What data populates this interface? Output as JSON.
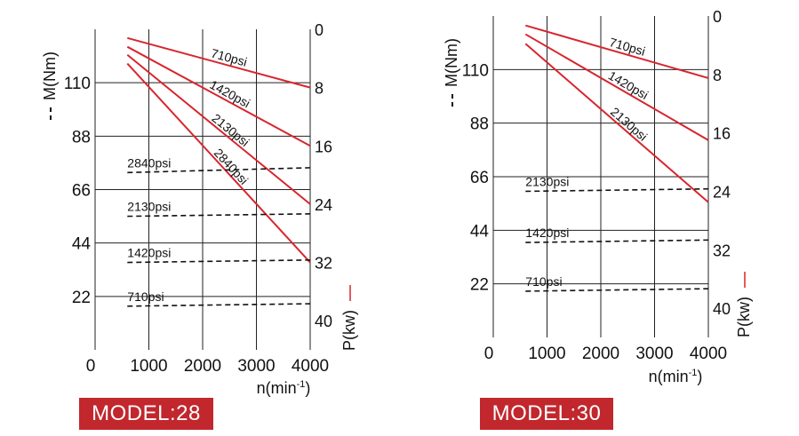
{
  "chart_data": [
    {
      "type": "line",
      "badge": "MODEL:28",
      "ylabel": "M(Nm)",
      "y2label": "P(kw)",
      "xlabel": "n(min",
      "xlabel_sup": "-1",
      "xlabel_close": ")",
      "xlim": [
        0,
        4000
      ],
      "ylim": [
        0,
        132
      ],
      "y2lim": [
        0,
        44
      ],
      "grid": true,
      "xticks": [
        "0",
        "1000",
        "2000",
        "3000",
        "4000"
      ],
      "yticks": [
        {
          "v": 22,
          "label": "22"
        },
        {
          "v": 44,
          "label": "44"
        },
        {
          "v": 66,
          "label": "66"
        },
        {
          "v": 88,
          "label": "88"
        },
        {
          "v": 110,
          "label": "110"
        }
      ],
      "y2ticks": [
        {
          "v": 0,
          "label": "0"
        },
        {
          "v": 8,
          "label": "8"
        },
        {
          "v": 16,
          "label": "16"
        },
        {
          "v": 24,
          "label": "24"
        },
        {
          "v": 32,
          "label": "32"
        },
        {
          "v": 40,
          "label": "40"
        }
      ],
      "power_series": [
        {
          "name": "710psi",
          "x": [
            600,
            4000
          ],
          "y": [
            1.2,
            8
          ]
        },
        {
          "name": "1420psi",
          "x": [
            600,
            4000
          ],
          "y": [
            2.4,
            16
          ]
        },
        {
          "name": "2130psi",
          "x": [
            600,
            4000
          ],
          "y": [
            3.5,
            24
          ]
        },
        {
          "name": "2840psi",
          "x": [
            600,
            4000
          ],
          "y": [
            4.7,
            32
          ]
        }
      ],
      "torque_series": [
        {
          "name": "2840psi",
          "x": [
            600,
            4000
          ],
          "y": [
            73,
            75
          ]
        },
        {
          "name": "2130psi",
          "x": [
            600,
            4000
          ],
          "y": [
            55,
            56
          ]
        },
        {
          "name": "1420psi",
          "x": [
            600,
            4000
          ],
          "y": [
            36,
            37
          ]
        },
        {
          "name": "710psi",
          "x": [
            600,
            4000
          ],
          "y": [
            18,
            19
          ]
        }
      ]
    },
    {
      "type": "line",
      "badge": "MODEL:30",
      "ylabel": "M(Nm)",
      "y2label": "P(kw)",
      "xlabel": "n(min",
      "xlabel_sup": "-1",
      "xlabel_close": ")",
      "xlim": [
        0,
        4000
      ],
      "ylim": [
        0,
        132
      ],
      "y2lim": [
        0,
        44
      ],
      "grid": true,
      "xticks": [
        "0",
        "1000",
        "2000",
        "3000",
        "4000"
      ],
      "yticks": [
        {
          "v": 22,
          "label": "22"
        },
        {
          "v": 44,
          "label": "44"
        },
        {
          "v": 66,
          "label": "66"
        },
        {
          "v": 88,
          "label": "88"
        },
        {
          "v": 110,
          "label": "110"
        }
      ],
      "y2ticks": [
        {
          "v": 0,
          "label": "0"
        },
        {
          "v": 8,
          "label": "8"
        },
        {
          "v": 16,
          "label": "16"
        },
        {
          "v": 24,
          "label": "24"
        },
        {
          "v": 32,
          "label": "32"
        },
        {
          "v": 40,
          "label": "40"
        }
      ],
      "power_series": [
        {
          "name": "710psi",
          "x": [
            600,
            4000
          ],
          "y": [
            1.3,
            8.5
          ]
        },
        {
          "name": "1420psi",
          "x": [
            600,
            4000
          ],
          "y": [
            2.5,
            17
          ]
        },
        {
          "name": "2130psi",
          "x": [
            600,
            4000
          ],
          "y": [
            3.8,
            25.5
          ]
        }
      ],
      "torque_series": [
        {
          "name": "2130psi",
          "x": [
            600,
            4000
          ],
          "y": [
            60,
            61
          ]
        },
        {
          "name": "1420psi",
          "x": [
            600,
            4000
          ],
          "y": [
            39,
            40
          ]
        },
        {
          "name": "710psi",
          "x": [
            600,
            4000
          ],
          "y": [
            19,
            20
          ]
        }
      ]
    }
  ]
}
